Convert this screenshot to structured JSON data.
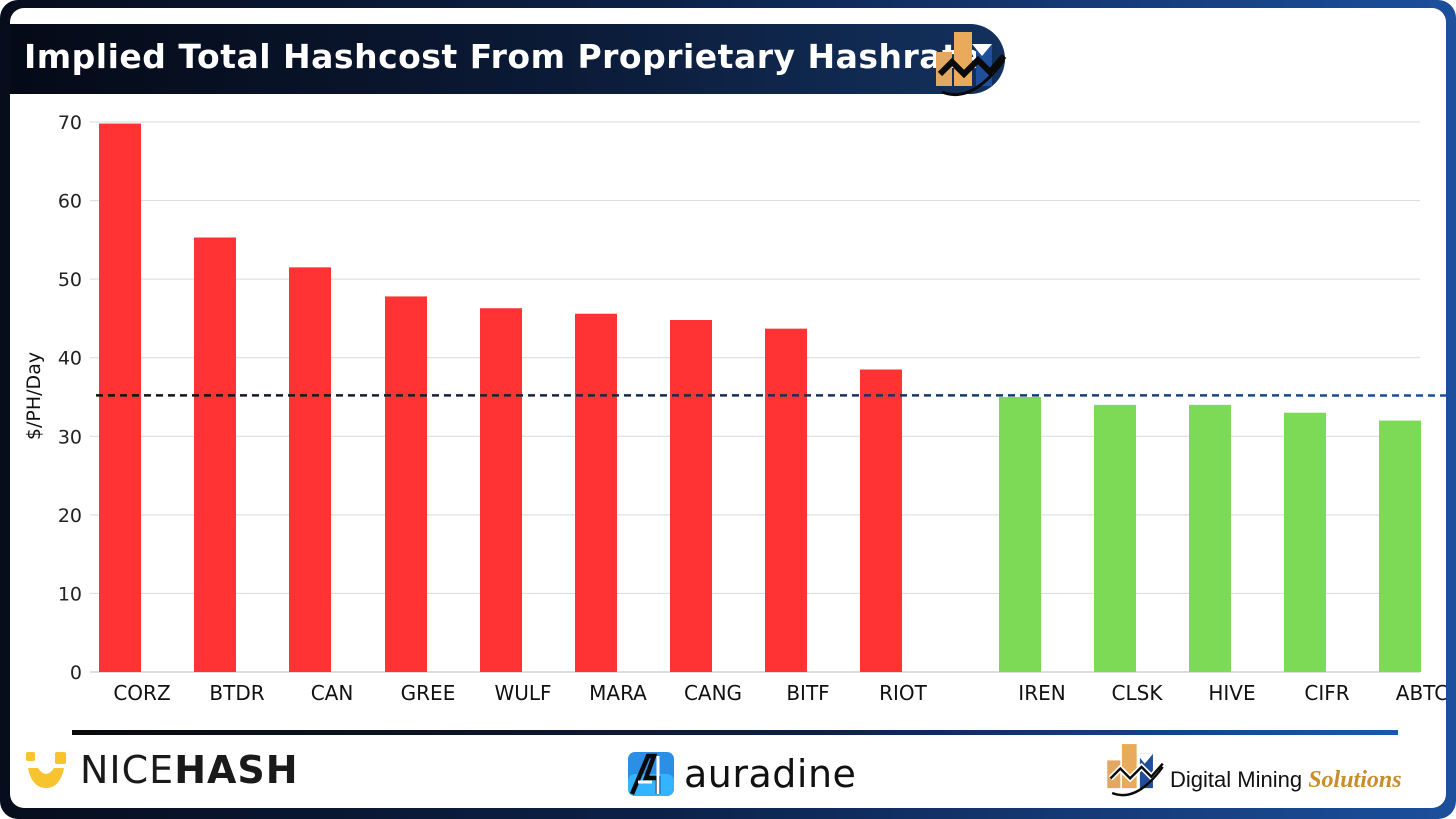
{
  "title": "Implied Total Hashcost From Proprietary Hashrate",
  "logos": {
    "nicehash_light": "NICE",
    "nicehash_bold": "HASH",
    "auradine": "auradine",
    "dms_main": "Digital Mining",
    "dms_accent": "Solutions"
  },
  "colors": {
    "above_line": "#ff3333",
    "below_line": "#7cda56",
    "reference_line_start": "#111111",
    "reference_line_end": "#1c4f9d",
    "nicehash_yellow": "#f7c32e",
    "dms_gold": "#c98d2a"
  },
  "chart_data": {
    "type": "bar",
    "title": "Implied Total Hashcost From Proprietary Hashrate",
    "xlabel": "",
    "ylabel": "$/PH/Day",
    "ylim": [
      0,
      70
    ],
    "yticks": [
      0,
      10,
      20,
      30,
      40,
      50,
      60,
      70
    ],
    "grid": true,
    "legend": "none",
    "categories": [
      "CORZ",
      "BTDR",
      "CAN",
      "GREE",
      "WULF",
      "MARA",
      "CANG",
      "BITF",
      "RIOT",
      "IREN",
      "CLSK",
      "HIVE",
      "CIFR",
      "ABTC"
    ],
    "values": [
      69.8,
      55.3,
      51.5,
      47.8,
      46.3,
      45.6,
      44.8,
      43.7,
      38.5,
      35.0,
      34.0,
      34.0,
      33.0,
      32.0
    ],
    "groups": [
      "above",
      "above",
      "above",
      "above",
      "above",
      "above",
      "above",
      "above",
      "above",
      "below",
      "below",
      "below",
      "below",
      "below"
    ],
    "reference_line": 35.2
  }
}
